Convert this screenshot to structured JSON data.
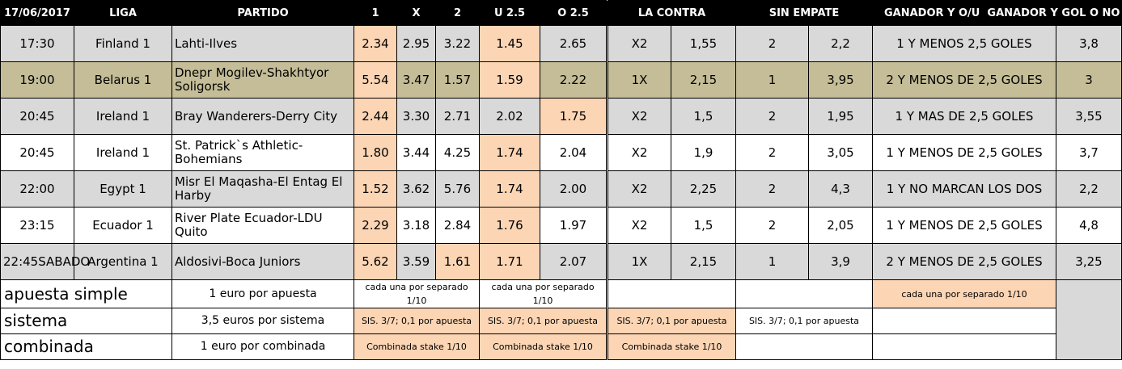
{
  "header": [
    "17/06/2017",
    "LIGA",
    "PARTIDO",
    "1",
    "X",
    "2",
    "U 2.5",
    "O 2.5",
    "LA CONTRA",
    "",
    "SIN EMPATE",
    "",
    "GANADOR Y O/U",
    "GANADOR Y GOL O NO"
  ],
  "rows": [
    {
      "time": "17:30",
      "liga": "Finland 1",
      "partido": "Lahti-Ilves",
      "o1": "2.34",
      "ox": "2.95",
      "o2": "3.22",
      "u25": "1.45",
      "o25": "2.65",
      "contra": "X2",
      "contra_odds": "1,55",
      "sin": "2",
      "sin_odds": "2,2",
      "ganador_ou": "1 Y MENOS 2,5 GOLES",
      "ganador_gol": "3,8"
    },
    {
      "time": "19:00",
      "liga": "Belarus 1",
      "partido": "Dnepr Mogilev-Shakhtyor Soligorsk",
      "o1": "5.54",
      "ox": "3.47",
      "o2": "1.57",
      "u25": "1.59",
      "o25": "2.22",
      "contra": "1X",
      "contra_odds": "2,15",
      "sin": "1",
      "sin_odds": "3,95",
      "ganador_ou": "2 Y MENOS DE 2,5 GOLES",
      "ganador_gol": "3"
    },
    {
      "time": "20:45",
      "liga": "Ireland 1",
      "partido": "Bray Wanderers-Derry City",
      "o1": "2.44",
      "ox": "3.30",
      "o2": "2.71",
      "u25": "2.02",
      "o25": "1.75",
      "contra": "X2",
      "contra_odds": "1,5",
      "sin": "2",
      "sin_odds": "1,95",
      "ganador_ou": "1 Y MAS DE 2,5 GOLES",
      "ganador_gol": "3,55"
    },
    {
      "time": "20:45",
      "liga": "Ireland 1",
      "partido": "St. Patrick`s Athletic-Bohemians",
      "o1": "1.80",
      "ox": "3.44",
      "o2": "4.25",
      "u25": "1.74",
      "o25": "2.04",
      "contra": "X2",
      "contra_odds": "1,9",
      "sin": "2",
      "sin_odds": "3,05",
      "ganador_ou": "1 Y MENOS DE 2,5 GOLES",
      "ganador_gol": "3,7"
    },
    {
      "time": "22:00",
      "liga": "Egypt 1",
      "partido": "Misr El Maqasha-El Entag El Harby",
      "o1": "1.52",
      "ox": "3.62",
      "o2": "5.76",
      "u25": "1.74",
      "o25": "2.00",
      "contra": "X2",
      "contra_odds": "2,25",
      "sin": "2",
      "sin_odds": "4,3",
      "ganador_ou": "1 Y NO MARCAN LOS DOS",
      "ganador_gol": "2,2"
    },
    {
      "time": "23:15",
      "liga": "Ecuador 1",
      "partido": "River Plate Ecuador-LDU Quito",
      "o1": "2.29",
      "ox": "3.18",
      "o2": "2.84",
      "u25": "1.76",
      "o25": "1.97",
      "contra": "X2",
      "contra_odds": "1,5",
      "sin": "2",
      "sin_odds": "2,05",
      "ganador_ou": "1 Y MENOS DE 2,5 GOLES",
      "ganador_gol": "4,8"
    },
    {
      "time": "22:45SABADO",
      "liga": "Argentina 1",
      "partido": "Aldosivi-Boca Juniors",
      "o1": "5.62",
      "ox": "3.59",
      "o2": "1.61",
      "u25": "1.71",
      "o25": "2.07",
      "contra": "1X",
      "contra_odds": "2,15",
      "sin": "1",
      "sin_odds": "3,9",
      "ganador_ou": "2 Y MENOS DE 2,5 GOLES",
      "ganador_gol": "3,25"
    }
  ],
  "footer": {
    "simple": {
      "label": "apuesta simple",
      "desc": "1 euro por apuesta",
      "c1": "cada una por separado 1/10",
      "c2": "cada una por separado 1/10",
      "c5": "cada una por separado 1/10"
    },
    "sistema": {
      "label": "sistema",
      "desc": "3,5 euros por sistema",
      "c1": "SIS. 3/7; 0,1 por apuesta",
      "c2": "SIS. 3/7; 0,1 por apuesta",
      "c3": "SIS. 3/7; 0,1 por apuesta",
      "c4": "SIS. 3/7; 0,1 por apuesta"
    },
    "combinada": {
      "label": "combinada",
      "desc": "1 euro por combinada",
      "c1": "Combinada stake 1/10",
      "c2": "Combinada stake 1/10",
      "c3": "Combinada stake 1/10"
    }
  },
  "colors": {
    "header_bg": "#000000",
    "row_grey": "#d9d9d9",
    "row_olive": "#c4bd97",
    "highlight_peach": "#fcd5b4"
  }
}
